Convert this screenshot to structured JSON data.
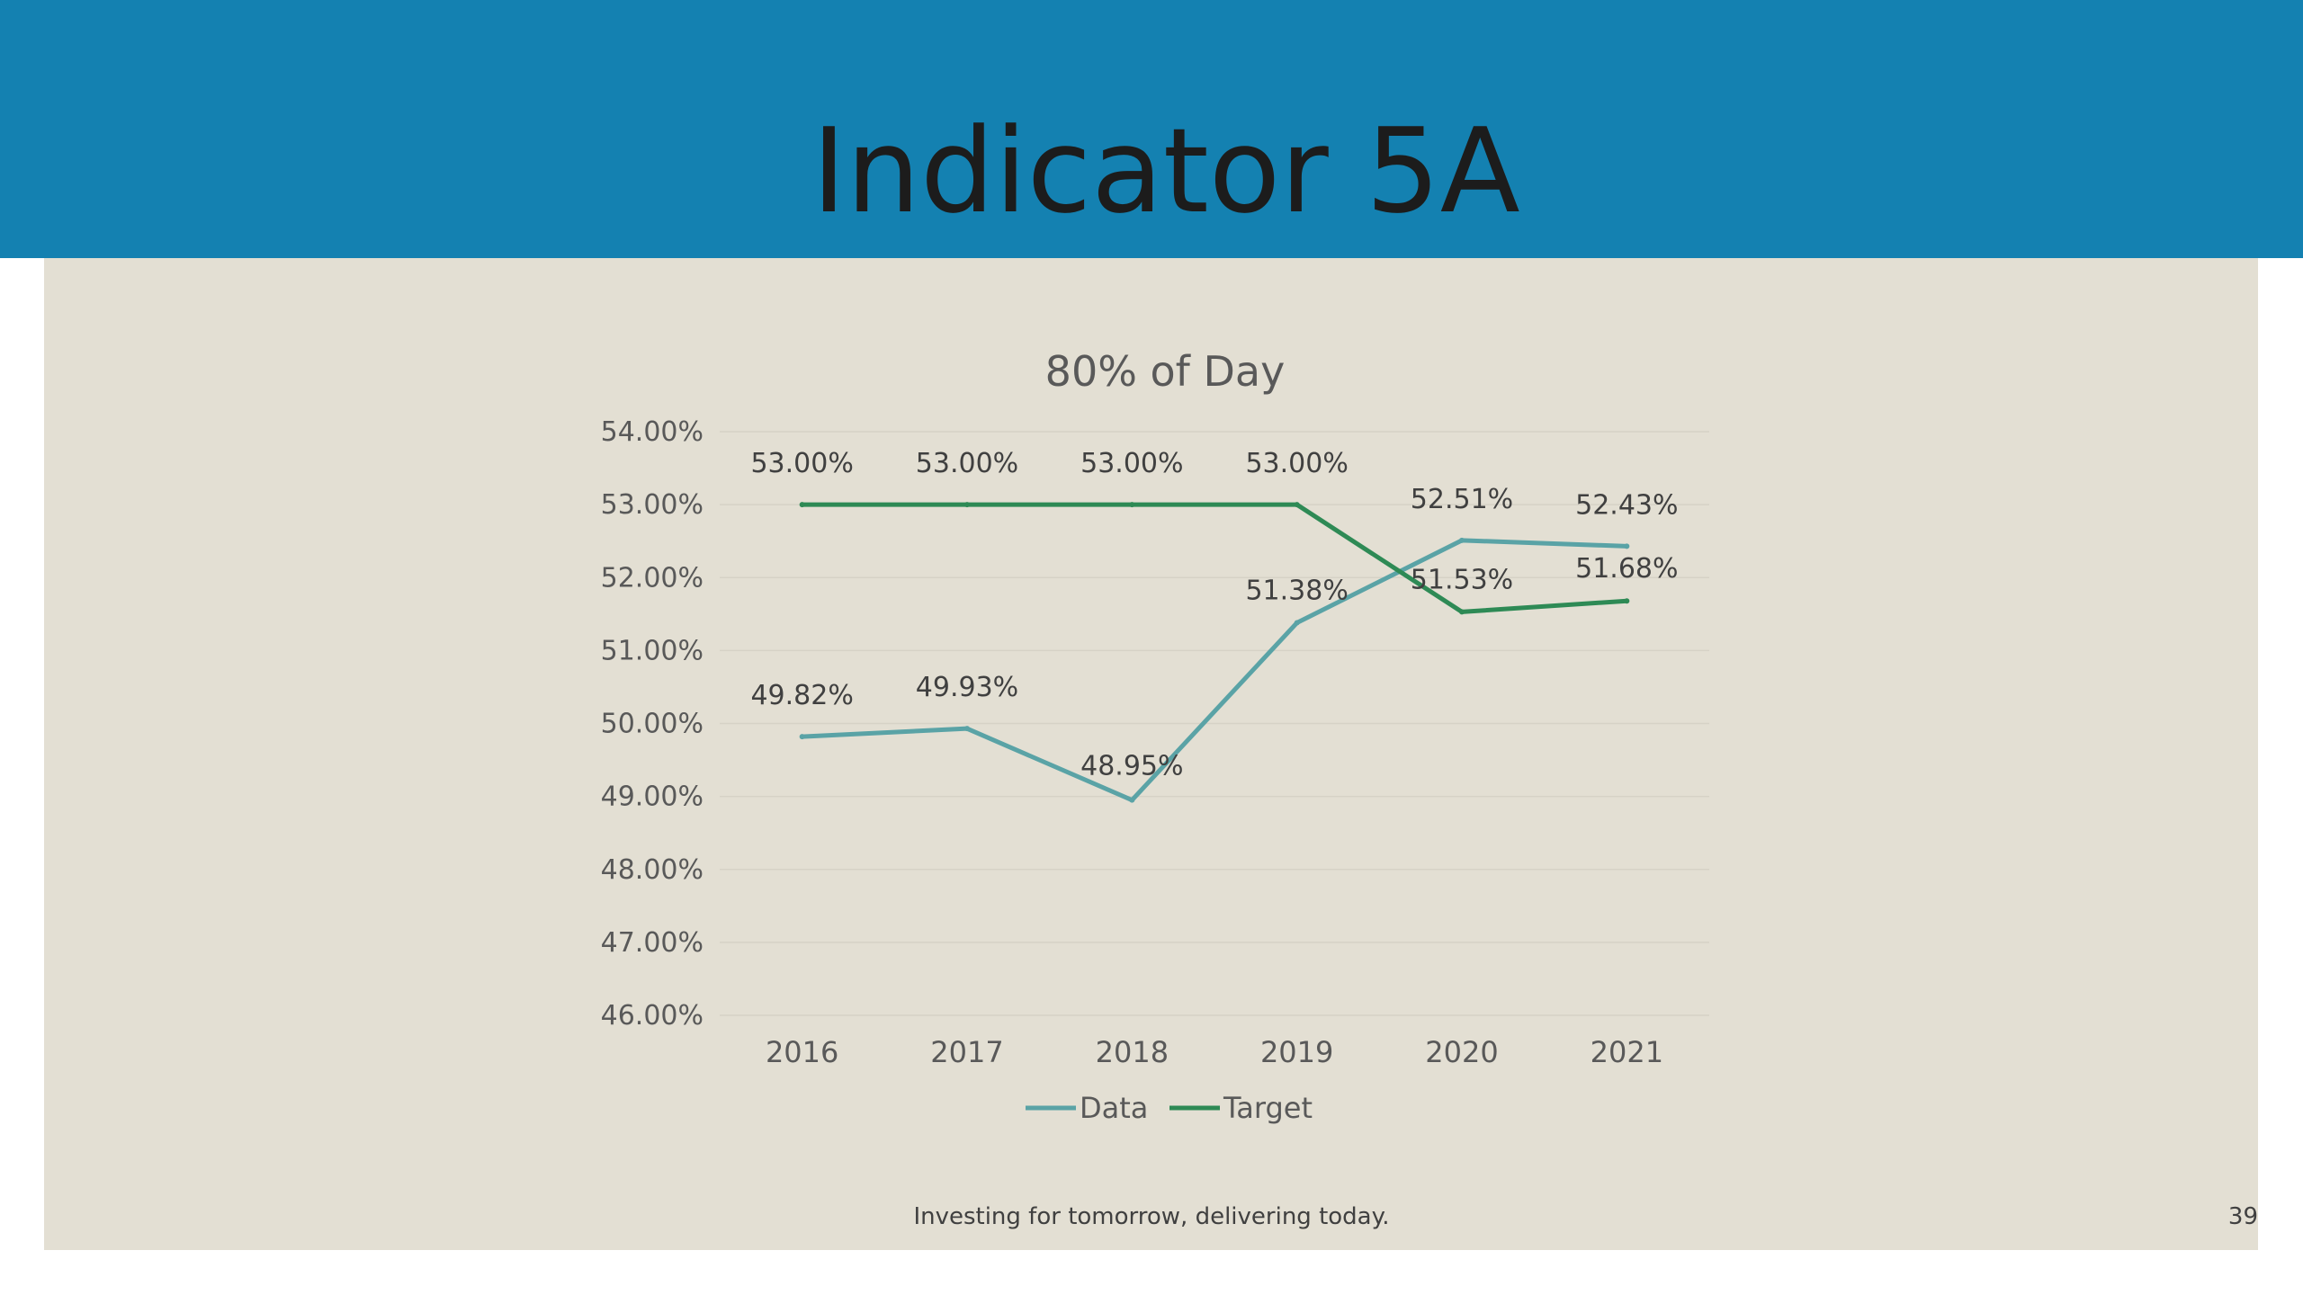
{
  "slide": {
    "title": "Indicator 5A",
    "footer": "Investing for tomorrow, delivering today.",
    "page_number": "39"
  },
  "colors": {
    "header": "#1481b1",
    "content_background": "#e3dfd3",
    "data_line": "#5aa3a6",
    "target_line": "#2e8a55"
  },
  "chart_data": {
    "type": "line",
    "title": "80% of Day",
    "categories": [
      "2016",
      "2017",
      "2018",
      "2019",
      "2020",
      "2021"
    ],
    "ylim": [
      46,
      54
    ],
    "y_ticks": [
      "54.00%",
      "53.00%",
      "52.00%",
      "51.00%",
      "50.00%",
      "49.00%",
      "48.00%",
      "47.00%",
      "46.00%"
    ],
    "grid": true,
    "legend_position": "bottom",
    "series": [
      {
        "name": "Data",
        "values": [
          49.82,
          49.93,
          48.95,
          51.38,
          52.51,
          52.43
        ],
        "labels": [
          "49.82%",
          "49.93%",
          "48.95%",
          "51.38%",
          "52.51%",
          "52.43%"
        ]
      },
      {
        "name": "Target",
        "values": [
          53.0,
          53.0,
          53.0,
          53.0,
          51.53,
          51.68
        ],
        "labels": [
          "53.00%",
          "53.00%",
          "53.00%",
          "53.00%",
          "51.53%",
          "51.68%"
        ]
      }
    ]
  }
}
